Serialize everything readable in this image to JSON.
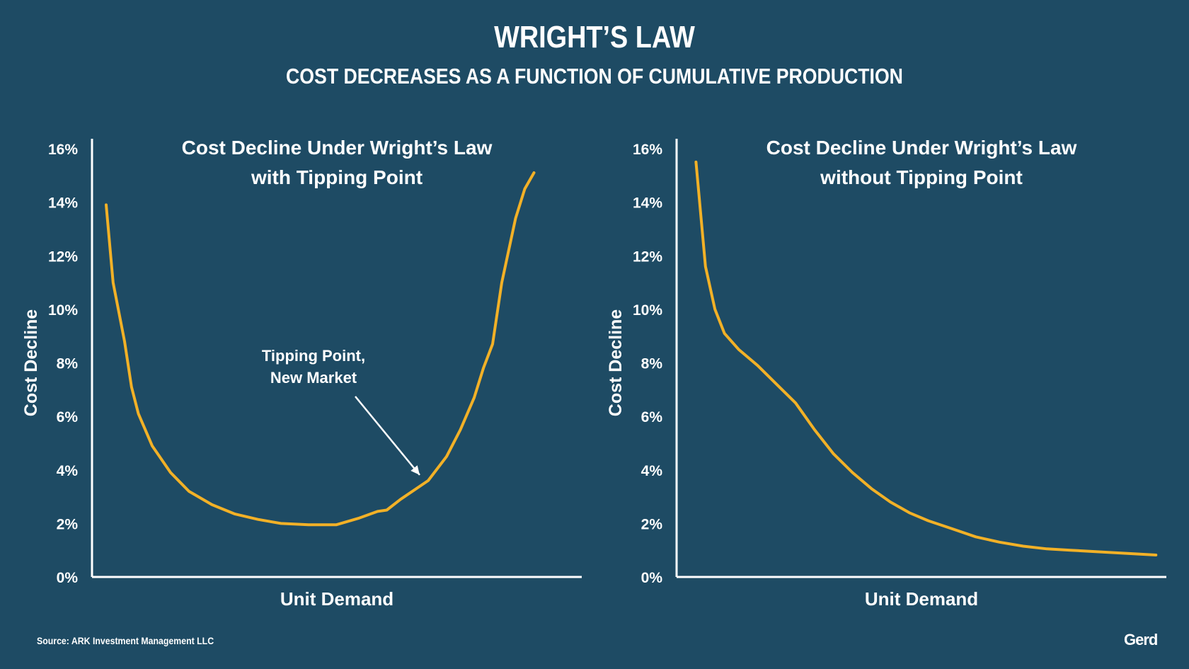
{
  "header": {
    "title": "WRIGHT’S LAW",
    "subtitle": "COST DECREASES AS A FUNCTION OF CUMULATIVE PRODUCTION"
  },
  "footer": {
    "source": "Source: ARK Investment Management LLC",
    "logo": "Gerd"
  },
  "colors": {
    "background": "#1e4b64",
    "line": "#f2b127",
    "text": "#ffffff"
  },
  "chart_data": [
    {
      "type": "line",
      "title_lines": [
        "Cost Decline Under Wright’s Law",
        "with Tipping Point"
      ],
      "xlabel": "Unit Demand",
      "ylabel": "Cost Decline",
      "ylim": [
        0,
        16
      ],
      "yticks": [
        "0%",
        "2%",
        "4%",
        "6%",
        "8%",
        "10%",
        "12%",
        "14%",
        "16%"
      ],
      "xlim": [
        0,
        100
      ],
      "annotation": {
        "lines": [
          "Tipping Point,",
          "New Market"
        ],
        "x": 70,
        "y": 3.6
      },
      "series": [
        {
          "values": [
            [
              0,
              13.9
            ],
            [
              1.5,
              11.0
            ],
            [
              4,
              8.8
            ],
            [
              5.5,
              7.1
            ],
            [
              7,
              6.1
            ],
            [
              10,
              4.9
            ],
            [
              14,
              3.9
            ],
            [
              18,
              3.2
            ],
            [
              23,
              2.7
            ],
            [
              28,
              2.35
            ],
            [
              33,
              2.15
            ],
            [
              38,
              2.0
            ],
            [
              44,
              1.95
            ],
            [
              50,
              1.95
            ],
            [
              55,
              2.2
            ],
            [
              59,
              2.45
            ],
            [
              61,
              2.5
            ],
            [
              64,
              2.9
            ],
            [
              70,
              3.6
            ],
            [
              74,
              4.5
            ],
            [
              77,
              5.5
            ],
            [
              80,
              6.7
            ],
            [
              82,
              7.8
            ],
            [
              84,
              8.7
            ],
            [
              86,
              11.0
            ],
            [
              89,
              13.4
            ],
            [
              91,
              14.5
            ],
            [
              93,
              15.1
            ]
          ]
        }
      ]
    },
    {
      "type": "line",
      "title_lines": [
        "Cost Decline Under Wright’s Law",
        "without Tipping Point"
      ],
      "xlabel": "Unit Demand",
      "ylabel": "Cost Decline",
      "ylim": [
        0,
        16
      ],
      "yticks": [
        "0%",
        "2%",
        "4%",
        "6%",
        "8%",
        "10%",
        "12%",
        "14%",
        "16%"
      ],
      "xlim": [
        0,
        100
      ],
      "series": [
        {
          "values": [
            [
              2,
              15.5
            ],
            [
              4,
              11.6
            ],
            [
              6,
              10.0
            ],
            [
              8,
              9.1
            ],
            [
              11,
              8.5
            ],
            [
              15,
              7.9
            ],
            [
              19,
              7.2
            ],
            [
              23,
              6.5
            ],
            [
              27,
              5.5
            ],
            [
              31,
              4.6
            ],
            [
              35,
              3.9
            ],
            [
              39,
              3.3
            ],
            [
              43,
              2.8
            ],
            [
              47,
              2.4
            ],
            [
              51,
              2.1
            ],
            [
              56,
              1.8
            ],
            [
              61,
              1.5
            ],
            [
              66,
              1.3
            ],
            [
              71,
              1.15
            ],
            [
              76,
              1.05
            ],
            [
              81,
              1.0
            ],
            [
              86,
              0.95
            ],
            [
              91,
              0.9
            ],
            [
              96,
              0.85
            ],
            [
              99,
              0.82
            ]
          ]
        }
      ]
    }
  ]
}
